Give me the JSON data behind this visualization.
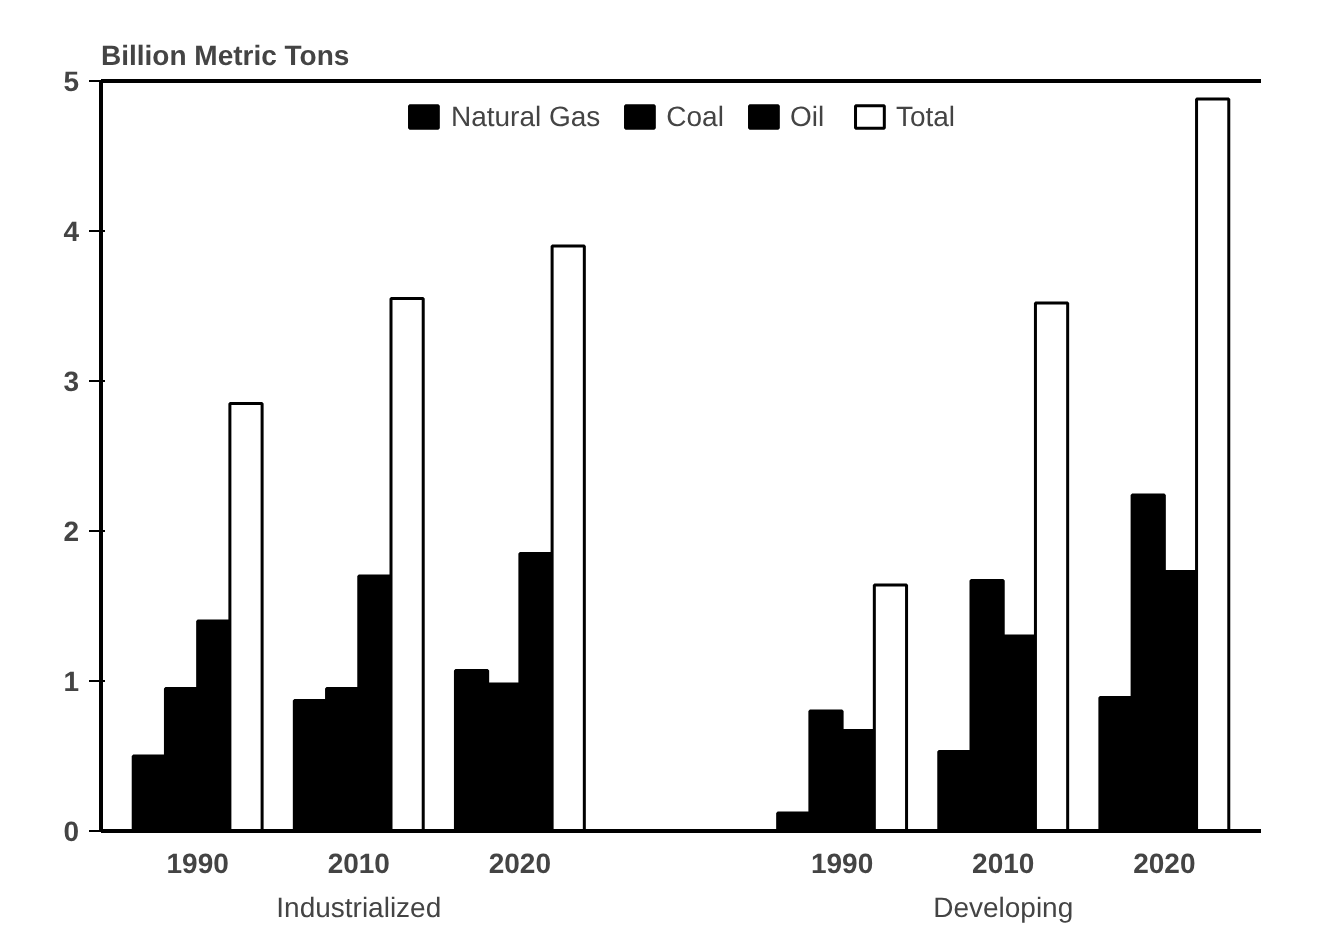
{
  "chart_data": {
    "type": "bar",
    "ylabel": "Billion Metric Tons",
    "categories": [
      "1990",
      "2010",
      "2020",
      "1990",
      "2010",
      "2020"
    ],
    "annotations": [
      "Industrialized",
      "Developing"
    ],
    "series": [
      {
        "name": "Natural Gas",
        "color": "#000000",
        "values": [
          0.5,
          0.87,
          1.07,
          0.12,
          0.53,
          0.89
        ]
      },
      {
        "name": "Coal",
        "color": "#000000",
        "values": [
          0.95,
          0.95,
          0.98,
          0.8,
          1.67,
          2.24
        ]
      },
      {
        "name": "Oil",
        "color": "#000000",
        "values": [
          1.4,
          1.7,
          1.85,
          0.67,
          1.3,
          1.73
        ]
      },
      {
        "name": "Total",
        "color": "#ffffff",
        "values": [
          2.85,
          3.55,
          3.9,
          1.64,
          3.52,
          4.88
        ]
      }
    ],
    "ylim": [
      0,
      5
    ],
    "yticks": [
      0,
      1,
      2,
      3,
      4,
      5
    ],
    "grid": false,
    "legend": "top"
  }
}
